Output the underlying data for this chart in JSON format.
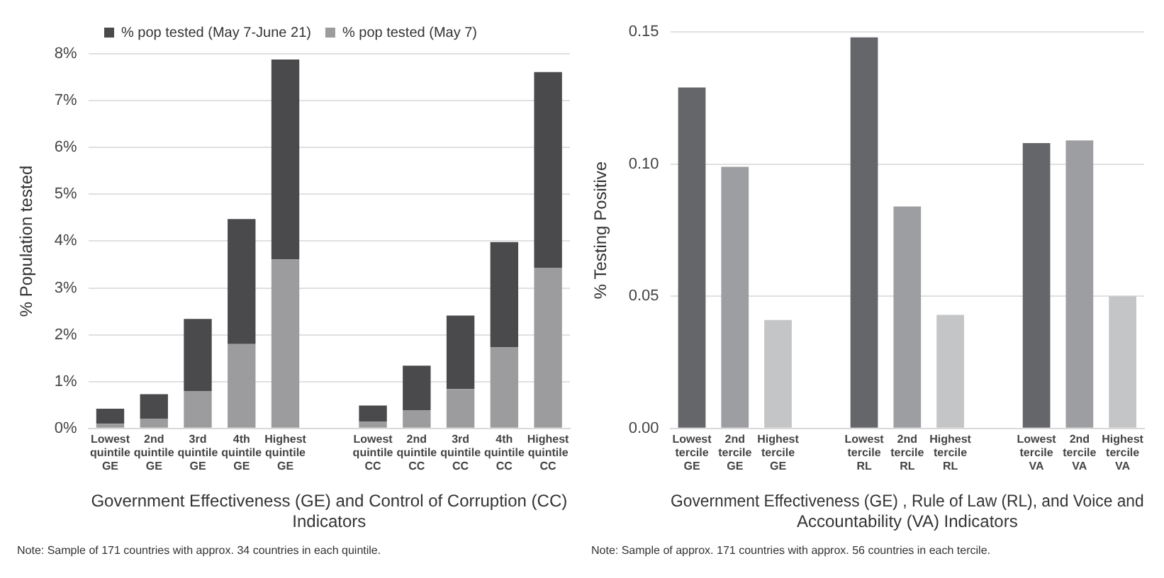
{
  "chart_data": [
    {
      "type": "bar",
      "stacked": true,
      "ylabel": "% Population tested",
      "xlabel": "Government Effectiveness (GE) and Control of Corruption (CC) Indicators",
      "categories": [
        "Lowest quintile GE",
        "2nd quintile GE",
        "3rd quintile GE",
        "4th quintile GE",
        "Highest quintile GE",
        null,
        "Lowest quintile CC",
        "2nd quintile CC",
        "3rd quintile CC",
        "4th quintile CC",
        "Highest quintile CC"
      ],
      "series": [
        {
          "name": "% pop tested (May 7)",
          "color": "#9c9c9e",
          "values": [
            0.1,
            0.21,
            0.8,
            1.8,
            3.61,
            null,
            0.14,
            0.39,
            0.84,
            1.73,
            3.43
          ]
        },
        {
          "name": "% pop tested (May 7-June 21)",
          "color": "#4a4a4c",
          "values": [
            0.32,
            0.52,
            1.54,
            2.67,
            4.27,
            null,
            0.35,
            0.95,
            1.57,
            2.25,
            4.18
          ]
        }
      ],
      "ylim": [
        0,
        8
      ],
      "yticks": [
        {
          "value": 0,
          "label": "0%"
        },
        {
          "value": 1,
          "label": "1%"
        },
        {
          "value": 2,
          "label": "2%"
        },
        {
          "value": 3,
          "label": "3%"
        },
        {
          "value": 4,
          "label": "4%"
        },
        {
          "value": 5,
          "label": "5%"
        },
        {
          "value": 6,
          "label": "6%"
        },
        {
          "value": 7,
          "label": "7%"
        },
        {
          "value": 8,
          "label": "8%"
        }
      ],
      "grid": "y",
      "legend": "top",
      "annotations": [
        "Note: Sample of 171 countries with approx. 34 countries in each quintile."
      ]
    },
    {
      "type": "bar",
      "ylabel": "% Testing Positive",
      "xlabel": "Government Effectiveness (GE) , Rule of Law (RL), and Voice and Accountability (VA) Indicators",
      "categories": [
        "Lowest tercile GE",
        "2nd tercile GE",
        "Highest tercile GE",
        null,
        "Lowest tercile RL",
        "2nd tercile RL",
        "Highest tercile RL",
        null,
        "Lowest tercile VA",
        "2nd tercile VA",
        "Highest tercile VA"
      ],
      "values": [
        0.129,
        0.099,
        0.041,
        null,
        0.148,
        0.084,
        0.043,
        null,
        0.108,
        0.109,
        0.05
      ],
      "colors": [
        "#65666a",
        "#9d9ea2",
        "#c4c5c7",
        "#ffffff",
        "#65666a",
        "#9d9ea2",
        "#c4c5c7",
        "#ffffff",
        "#65666a",
        "#9d9ea2",
        "#c4c5c7"
      ],
      "ylim": [
        0,
        0.15
      ],
      "yticks": [
        {
          "value": 0,
          "label": "0.00"
        },
        0.05,
        {
          "value": 0.1,
          "label": "0.10"
        },
        0.15
      ],
      "grid": "y",
      "annotations": [
        "Note: Sample of approx. 171 countries with approx. 56 countries in each tercile."
      ]
    }
  ]
}
